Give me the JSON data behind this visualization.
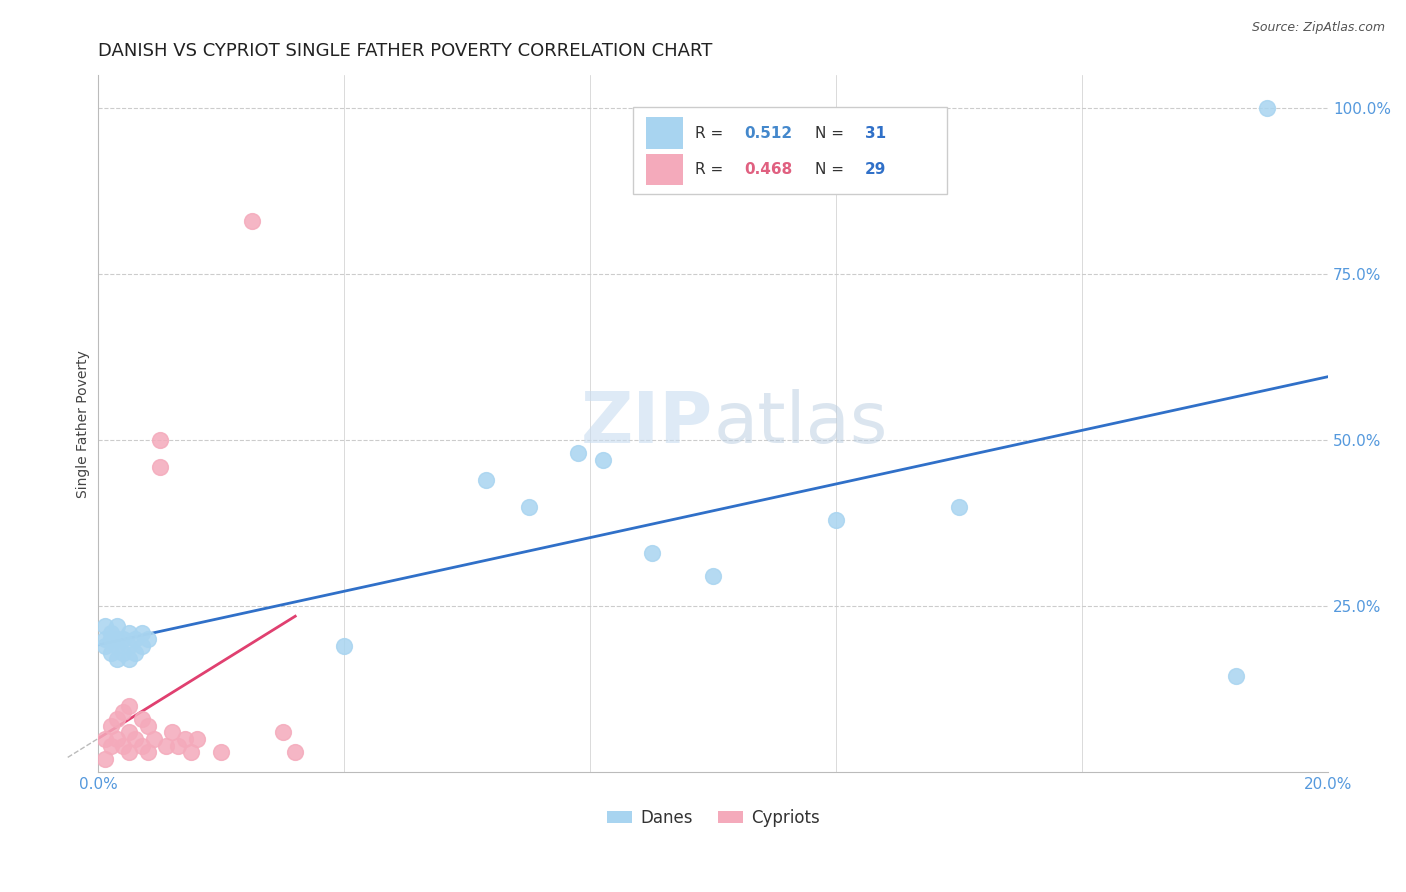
{
  "title": "DANISH VS CYPRIOT SINGLE FATHER POVERTY CORRELATION CHART",
  "source": "Source: ZipAtlas.com",
  "ylabel": "Single Father Poverty",
  "xlim": [
    0.0,
    0.2
  ],
  "ylim": [
    0.0,
    1.05
  ],
  "yticks": [
    0.0,
    0.25,
    0.5,
    0.75,
    1.0
  ],
  "ytick_labels": [
    "",
    "25.0%",
    "50.0%",
    "75.0%",
    "100.0%"
  ],
  "xticks": [
    0.0,
    0.04,
    0.08,
    0.12,
    0.16,
    0.2
  ],
  "xtick_labels": [
    "0.0%",
    "",
    "",
    "",
    "",
    "20.0%"
  ],
  "danes_x": [
    0.001,
    0.001,
    0.001,
    0.002,
    0.002,
    0.002,
    0.003,
    0.003,
    0.003,
    0.003,
    0.004,
    0.004,
    0.005,
    0.005,
    0.005,
    0.006,
    0.006,
    0.007,
    0.007,
    0.008,
    0.04,
    0.063,
    0.07,
    0.078,
    0.082,
    0.09,
    0.1,
    0.12,
    0.14,
    0.185,
    0.19
  ],
  "danes_y": [
    0.19,
    0.2,
    0.22,
    0.18,
    0.2,
    0.21,
    0.17,
    0.19,
    0.2,
    0.22,
    0.18,
    0.2,
    0.17,
    0.19,
    0.21,
    0.18,
    0.2,
    0.19,
    0.21,
    0.2,
    0.19,
    0.44,
    0.4,
    0.48,
    0.47,
    0.33,
    0.295,
    0.38,
    0.4,
    0.145,
    1.0
  ],
  "cypriots_x": [
    0.001,
    0.001,
    0.002,
    0.002,
    0.003,
    0.003,
    0.004,
    0.004,
    0.005,
    0.005,
    0.005,
    0.006,
    0.007,
    0.007,
    0.008,
    0.008,
    0.009,
    0.01,
    0.01,
    0.011,
    0.012,
    0.013,
    0.014,
    0.015,
    0.016,
    0.02,
    0.025,
    0.03,
    0.032
  ],
  "cypriots_y": [
    0.02,
    0.05,
    0.04,
    0.07,
    0.05,
    0.08,
    0.04,
    0.09,
    0.03,
    0.06,
    0.1,
    0.05,
    0.04,
    0.08,
    0.03,
    0.07,
    0.05,
    0.46,
    0.5,
    0.04,
    0.06,
    0.04,
    0.05,
    0.03,
    0.05,
    0.03,
    0.83,
    0.06,
    0.03
  ],
  "danes_color": "#A8D4F0",
  "cypriots_color": "#F4AABB",
  "danes_line_color": "#3070C8",
  "cypriots_line_color": "#E04070",
  "danes_R": 0.512,
  "danes_N": 31,
  "cypriots_R": 0.468,
  "cypriots_N": 29,
  "legend_R_color": "#4488CC",
  "legend_R2_color": "#E06080",
  "legend_N_color": "#3070C8",
  "watermark_zip": "ZIP",
  "watermark_atlas": "atlas",
  "background_color": "#FFFFFF",
  "grid_color": "#CCCCCC",
  "tick_label_color": "#5599DD",
  "title_fontsize": 13,
  "axis_label_fontsize": 10,
  "tick_fontsize": 11,
  "source_fontsize": 9
}
